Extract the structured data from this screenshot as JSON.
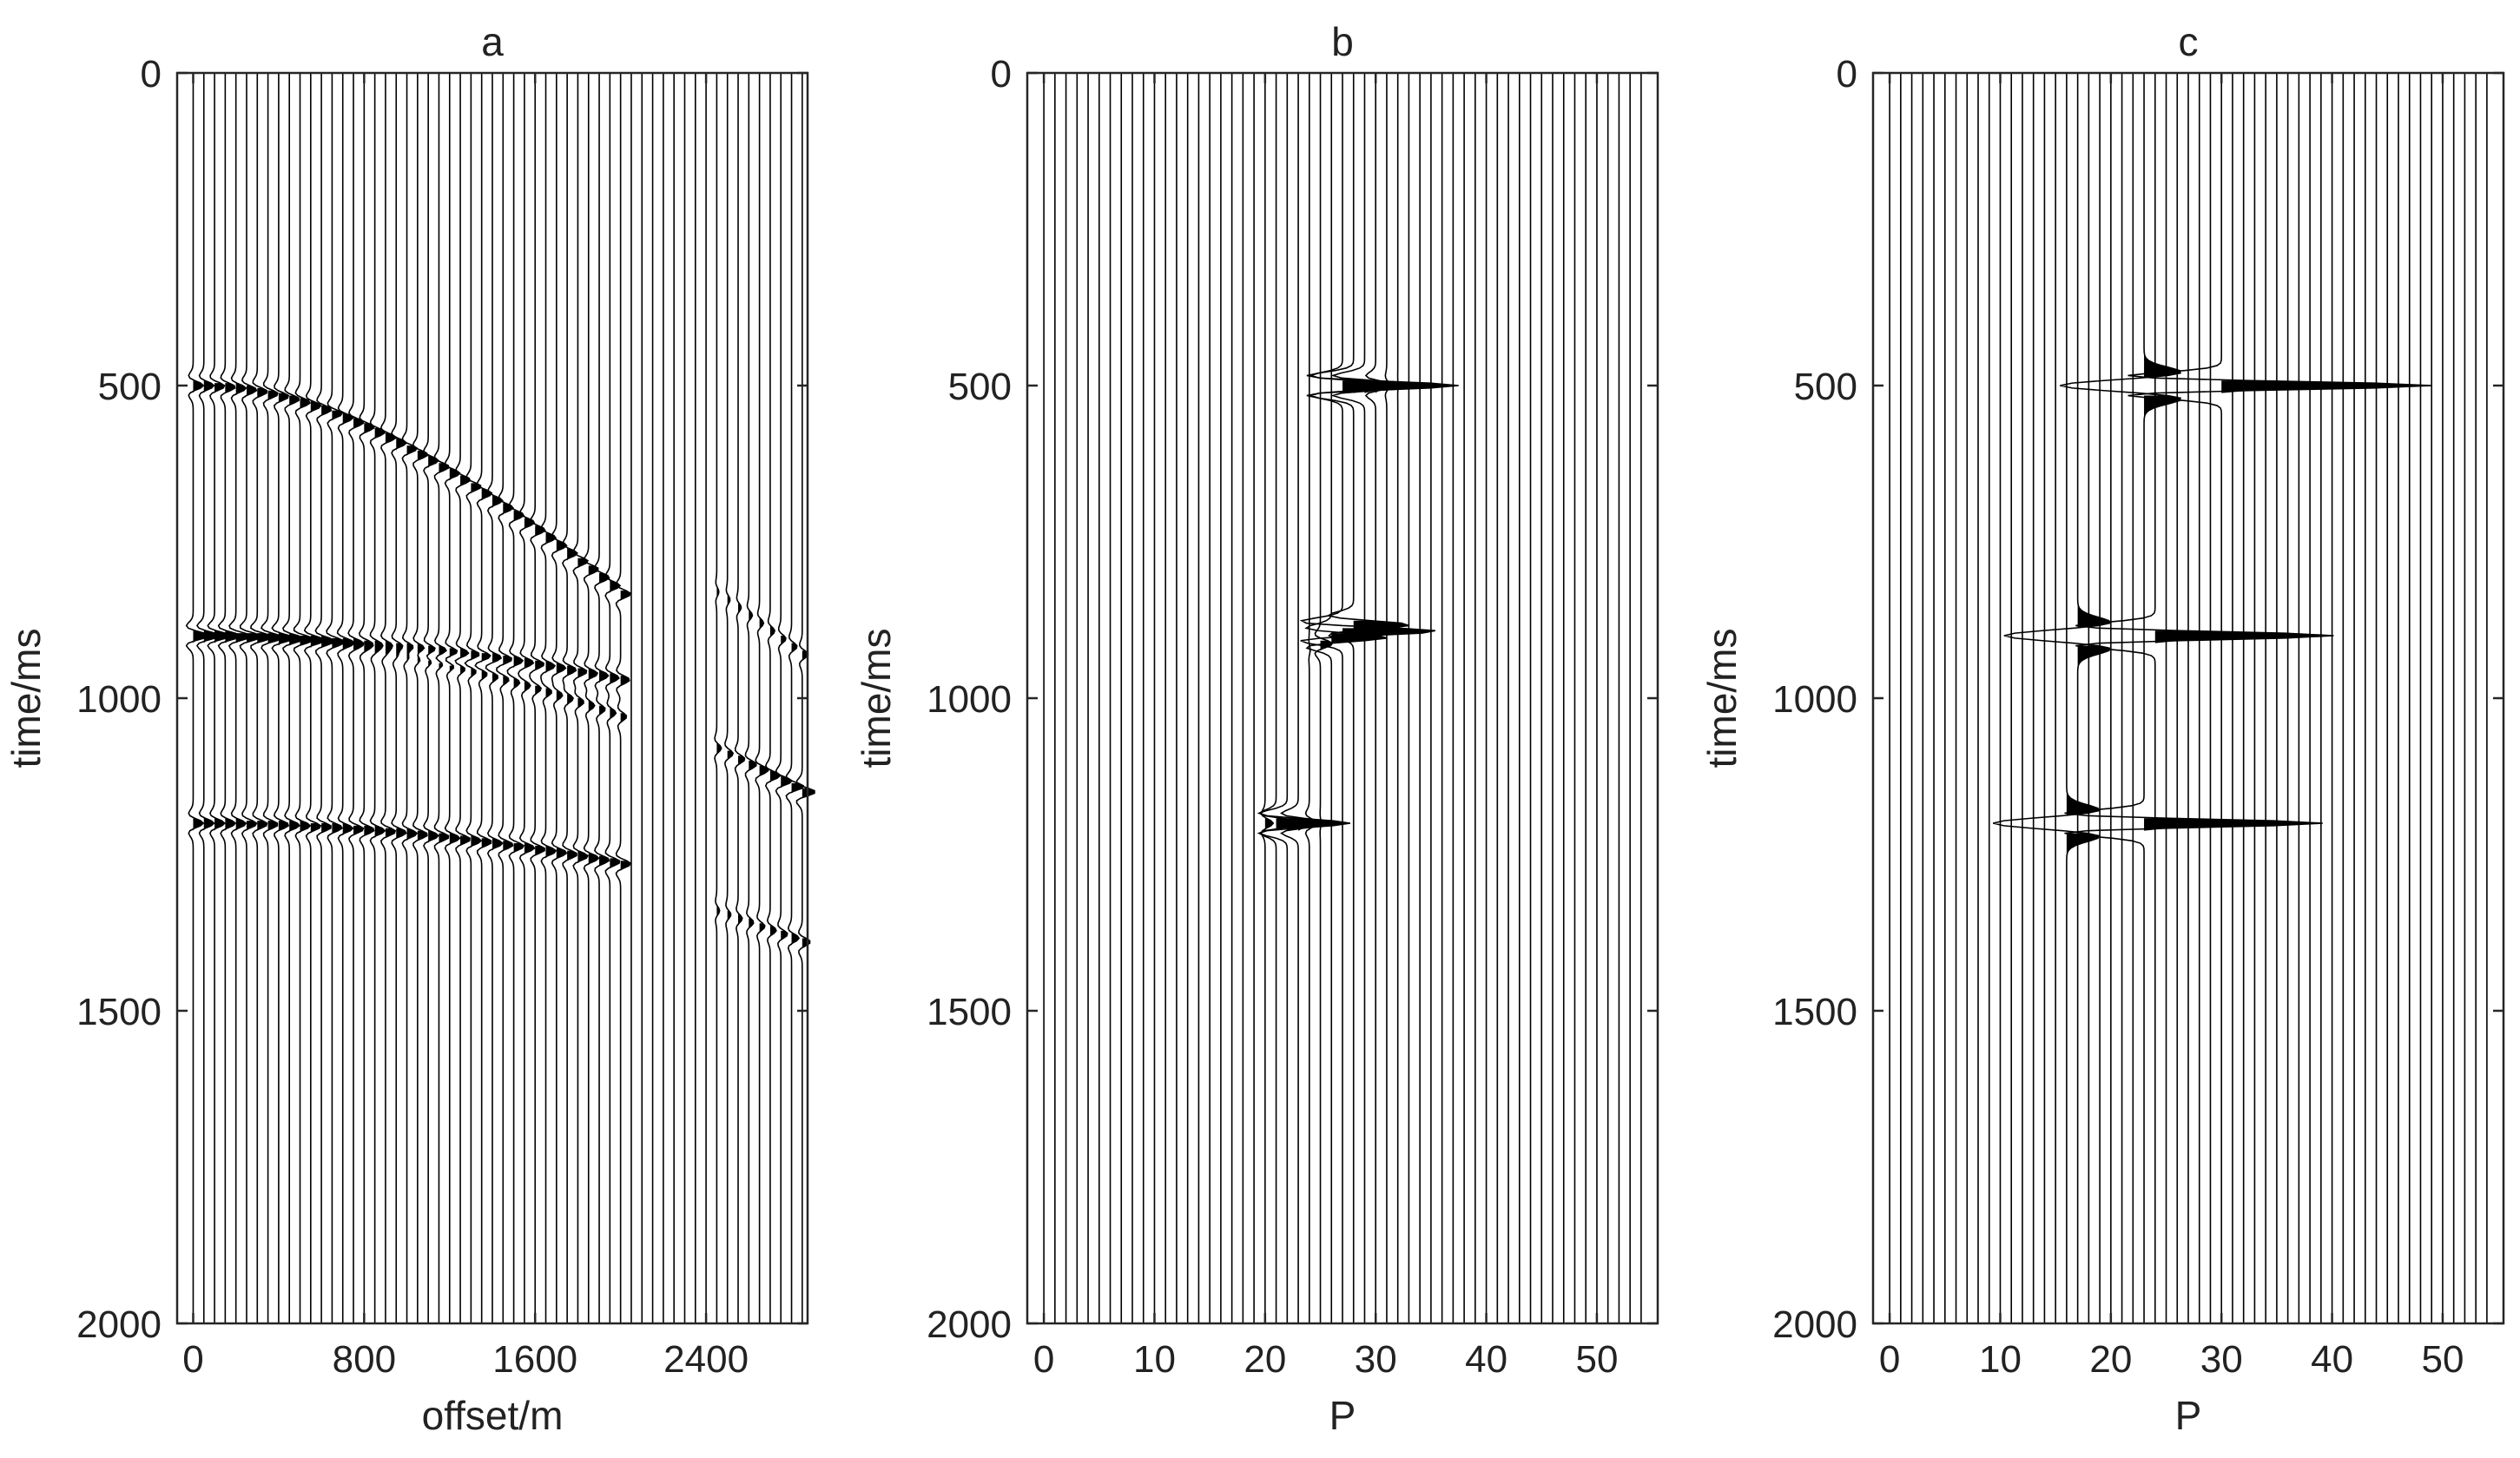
{
  "colors": {
    "trace": "#000000",
    "axis": "#262626",
    "text": "#222222",
    "background": "#ffffff"
  },
  "chart_data": [
    {
      "type": "wiggle",
      "title": "a",
      "xlabel": "offset/m",
      "ylabel": "time/ms",
      "xlim": [
        -75,
        2875
      ],
      "ylim": [
        0,
        2000
      ],
      "y_reversed": true,
      "xticks": [
        0,
        800,
        1600,
        2400
      ],
      "yticks": [
        0,
        500,
        1000,
        1500,
        2000
      ],
      "trace_spacing": 50,
      "trace_start": 0,
      "trace_count": 58,
      "events": [
        {
          "kind": "hyperbola",
          "t0": 500,
          "v": 3000,
          "x_max": 2000,
          "amplitude": 1.0
        },
        {
          "kind": "hyperbola",
          "t0": 900,
          "v": 4000,
          "x_max": 2000,
          "amplitude": 0.6
        },
        {
          "kind": "hyperbola",
          "t0": 900,
          "v": 5500,
          "x_max": 2000,
          "amplitude": 0.9
        },
        {
          "kind": "hyperbola",
          "t0": 1200,
          "v": 5000,
          "x_max": 2000,
          "amplitude": 1.0
        },
        {
          "kind": "linear",
          "t_start": 830,
          "t_end": 930,
          "x_min": 2450,
          "x_max": 2850,
          "amplitude": 0.6
        },
        {
          "kind": "linear",
          "t_start": 1080,
          "t_end": 1150,
          "x_min": 2450,
          "x_max": 2850,
          "amplitude": 1.3
        },
        {
          "kind": "linear",
          "t_start": 1340,
          "t_end": 1390,
          "x_min": 2450,
          "x_max": 2850,
          "amplitude": 0.8
        }
      ]
    },
    {
      "type": "wiggle",
      "title": "b",
      "xlabel": "P",
      "ylabel": "time/ms",
      "xlim": [
        -1.5,
        55.5
      ],
      "ylim": [
        0,
        2000
      ],
      "y_reversed": true,
      "xticks": [
        0,
        10,
        20,
        30,
        40,
        50
      ],
      "yticks": [
        0,
        500,
        1000,
        1500,
        2000
      ],
      "trace_spacing": 1,
      "trace_start": 0,
      "trace_count": 55,
      "events": [
        {
          "kind": "focus",
          "p": 28,
          "t": 500,
          "p_min": 27,
          "p_max": 33,
          "slope": 0,
          "amplitude": 10,
          "width": 1.6
        },
        {
          "kind": "focus",
          "p": 27,
          "t": 893,
          "p_min": 19,
          "p_max": 28,
          "slope": -10,
          "amplitude": 9,
          "width": 1.4
        },
        {
          "kind": "focus",
          "p": 22,
          "t": 1200,
          "p_min": 20,
          "p_max": 25,
          "slope": 0,
          "amplitude": 6,
          "width": 1.4
        }
      ]
    },
    {
      "type": "wiggle",
      "title": "c",
      "xlabel": "P",
      "ylabel": "time/ms",
      "xlim": [
        -1.5,
        55.5
      ],
      "ylim": [
        0,
        2000
      ],
      "y_reversed": true,
      "xticks": [
        0,
        10,
        20,
        30,
        40,
        50
      ],
      "yticks": [
        0,
        500,
        1000,
        1500,
        2000
      ],
      "trace_spacing": 1,
      "trace_start": 0,
      "trace_count": 55,
      "events": [
        {
          "kind": "spike",
          "p": 30,
          "t": 500,
          "amplitude": 20,
          "side_amplitude": 8
        },
        {
          "kind": "spike",
          "p": 24,
          "t": 900,
          "amplitude": 17,
          "side_amplitude": 7
        },
        {
          "kind": "spike",
          "p": 23,
          "t": 1200,
          "amplitude": 17,
          "side_amplitude": 7
        }
      ]
    }
  ]
}
